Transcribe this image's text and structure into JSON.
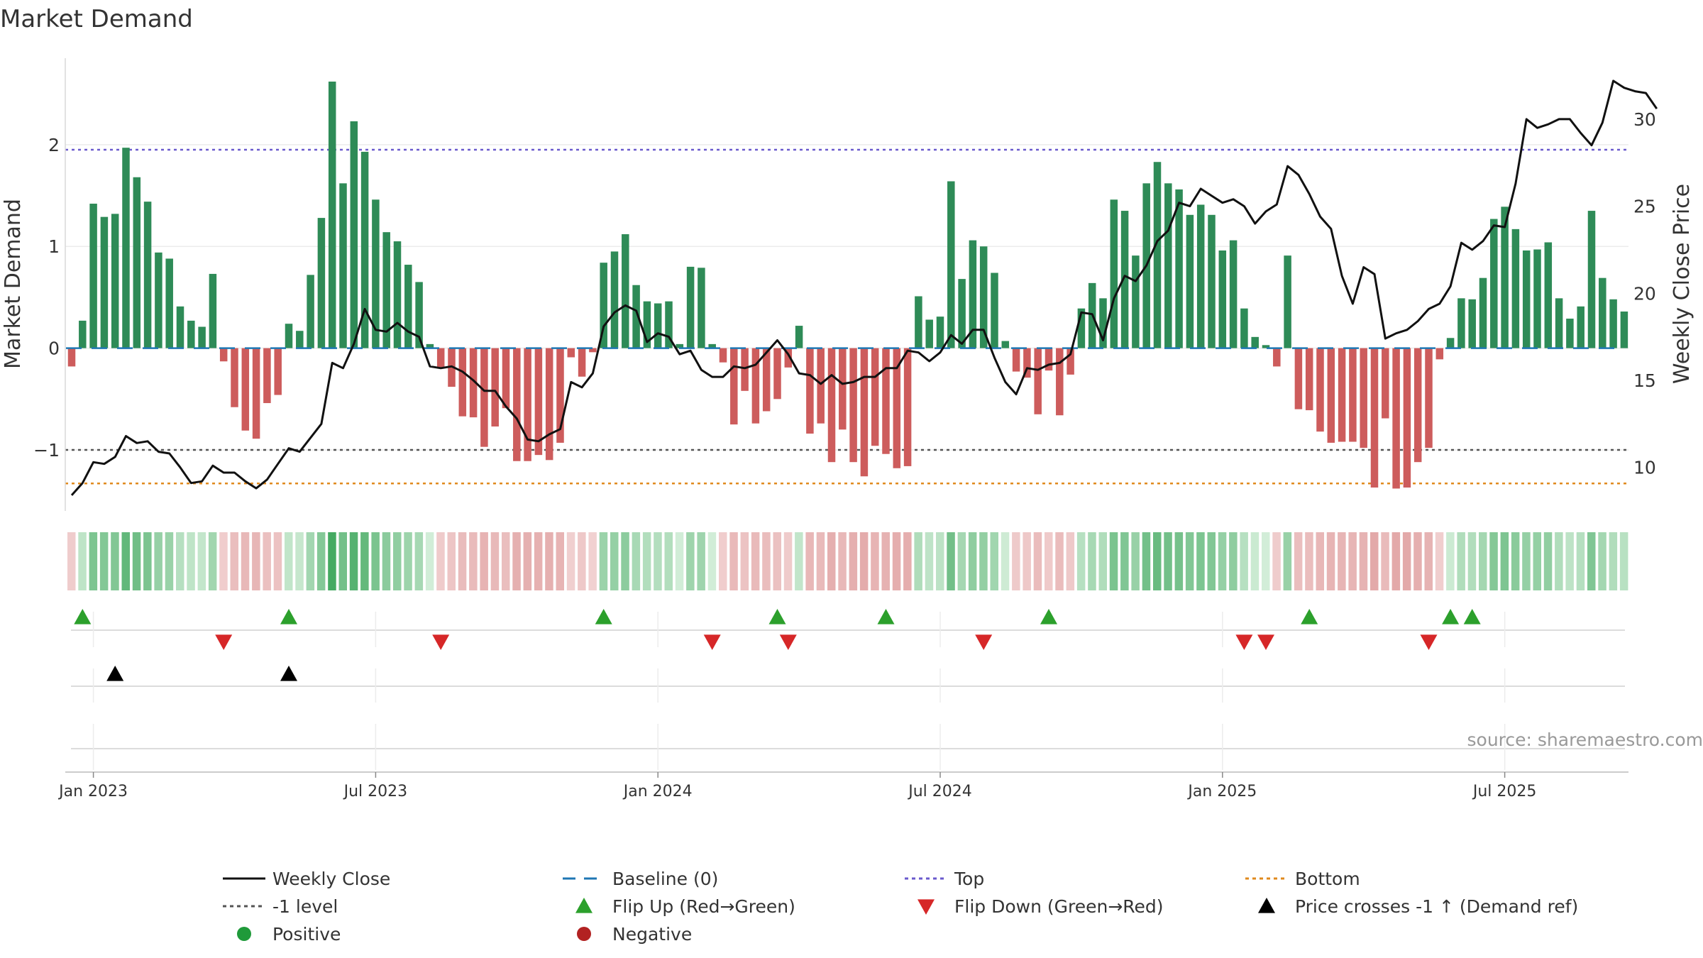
{
  "chart_data": {
    "type": "bar",
    "title": "Market Demand",
    "ylabel": "Market Demand",
    "y2label": "Weekly Close Price",
    "ylim": [
      -1.6,
      2.85
    ],
    "y2lim": [
      7.5,
      33.5
    ],
    "yticks": [
      "2",
      "1",
      "0",
      "−1"
    ],
    "yticks_values": [
      2,
      1,
      0,
      -1
    ],
    "y2ticks": [
      "30",
      "25",
      "20",
      "15",
      "10"
    ],
    "y2ticks_values": [
      30,
      25,
      20,
      15,
      10
    ],
    "xticks": [
      "Jan 2023",
      "Jul 2023",
      "Jan 2024",
      "Jul 2024",
      "Jan 2025",
      "Jul 2025"
    ],
    "xticks_week_index": [
      2,
      28,
      54,
      80,
      106,
      132
    ],
    "weeks": 143,
    "source_note": "source: sharemaestro.com",
    "levels": {
      "top": 1.95,
      "bottom": -1.33,
      "minus_one": -1.0,
      "baseline": 0
    },
    "series": [
      {
        "name": "Market Demand",
        "values": [
          -0.18,
          0.27,
          1.42,
          1.29,
          1.32,
          1.97,
          1.68,
          1.44,
          0.94,
          0.88,
          0.41,
          0.27,
          0.21,
          0.73,
          -0.13,
          -0.58,
          -0.81,
          -0.89,
          -0.54,
          -0.46,
          0.24,
          0.17,
          0.72,
          1.28,
          2.62,
          1.62,
          2.23,
          1.93,
          1.46,
          1.14,
          1.05,
          0.82,
          0.65,
          0.04,
          -0.19,
          -0.38,
          -0.67,
          -0.68,
          -0.97,
          -0.77,
          -0.59,
          -1.11,
          -1.11,
          -1.05,
          -1.1,
          -0.93,
          -0.09,
          -0.28,
          -0.04,
          0.84,
          0.95,
          1.12,
          0.62,
          0.46,
          0.44,
          0.46,
          0.04,
          0.8,
          0.79,
          0.04,
          -0.14,
          -0.75,
          -0.42,
          -0.74,
          -0.62,
          -0.5,
          -0.19,
          0.22,
          -0.84,
          -0.74,
          -1.12,
          -0.8,
          -1.12,
          -1.26,
          -0.96,
          -1.04,
          -1.18,
          -1.16,
          0.51,
          0.28,
          0.31,
          1.64,
          0.68,
          1.06,
          1.0,
          0.74,
          0.07,
          -0.23,
          -0.29,
          -0.65,
          -0.22,
          -0.66,
          -0.26,
          0.39,
          0.64,
          0.49,
          1.46,
          1.35,
          0.91,
          1.62,
          1.83,
          1.62,
          1.56,
          1.31,
          1.41,
          1.31,
          0.96,
          1.06,
          0.39,
          0.11,
          0.03,
          -0.18,
          0.91,
          -0.6,
          -0.61,
          -0.82,
          -0.93,
          -0.92,
          -0.92,
          -0.98,
          -1.37,
          -0.69,
          -1.38,
          -1.37,
          -1.12,
          -0.98,
          -0.11,
          0.1,
          0.49,
          0.48,
          0.69,
          1.27,
          1.39,
          1.17,
          0.96,
          0.97,
          1.04,
          0.49,
          0.29,
          0.41,
          1.35,
          0.69,
          0.48,
          0.36
        ]
      },
      {
        "name": "Weekly Close",
        "values": [
          8.4,
          9.1,
          10.3,
          10.2,
          10.6,
          11.8,
          11.4,
          11.5,
          10.9,
          10.8,
          10.0,
          9.1,
          9.2,
          10.1,
          9.7,
          9.7,
          9.2,
          8.8,
          9.3,
          10.2,
          11.1,
          10.9,
          11.7,
          12.5,
          16.0,
          15.7,
          17.1,
          19.1,
          17.9,
          17.8,
          18.3,
          17.8,
          17.5,
          15.8,
          15.7,
          15.8,
          15.5,
          15.0,
          14.4,
          14.4,
          13.5,
          12.8,
          11.6,
          11.5,
          11.9,
          12.2,
          14.9,
          14.6,
          15.4,
          18.1,
          18.9,
          19.3,
          19.0,
          17.2,
          17.7,
          17.5,
          16.5,
          16.7,
          15.6,
          15.2,
          15.2,
          15.8,
          15.7,
          15.9,
          16.6,
          17.3,
          16.5,
          15.4,
          15.3,
          14.8,
          15.3,
          14.8,
          14.9,
          15.2,
          15.2,
          15.7,
          15.7,
          16.7,
          16.6,
          16.1,
          16.6,
          17.6,
          17.1,
          17.9,
          17.9,
          16.3,
          14.9,
          14.2,
          15.7,
          15.6,
          15.9,
          16.0,
          16.5,
          18.9,
          18.8,
          17.3,
          19.7,
          21.0,
          20.7,
          21.6,
          23.0,
          23.6,
          25.2,
          25.0,
          26.0,
          25.6,
          25.2,
          25.4,
          25.0,
          24.0,
          24.7,
          25.1,
          27.3,
          26.8,
          25.7,
          24.4,
          23.7,
          21.0,
          19.4,
          21.5,
          21.1,
          17.4,
          17.7,
          17.9,
          18.4,
          19.1,
          19.4,
          20.4,
          22.9,
          22.5,
          23.0,
          23.9,
          23.8,
          26.3,
          30.0,
          29.5,
          29.7,
          30.0,
          30.0,
          29.2,
          28.5,
          29.8,
          32.2,
          31.8,
          31.6,
          31.5,
          30.6
        ]
      }
    ],
    "flip_up_weeks": [
      1,
      20,
      49,
      65,
      75,
      90,
      114,
      127,
      129
    ],
    "flip_down_weeks": [
      14,
      34,
      59,
      66,
      84,
      108,
      110,
      125
    ],
    "price_cross_weeks": [
      4,
      20
    ],
    "colors": {
      "positive": "#2e8b57",
      "negative": "#cd5c5c",
      "price": "#111111",
      "baseline": "#1f77b4",
      "top": "#6a5acd",
      "bottom": "#e08a1e",
      "minus_one": "#555555",
      "flip_up": "#2ca02c",
      "flip_down": "#d62728",
      "cross": "#000000",
      "grid": "#ececec"
    },
    "legend": {
      "items": [
        {
          "label": "Weekly Close",
          "key": "weekly-close"
        },
        {
          "label": "Baseline (0)",
          "key": "baseline"
        },
        {
          "label": "Top",
          "key": "top"
        },
        {
          "label": "Bottom",
          "key": "bottom"
        },
        {
          "label": "-1 level",
          "key": "minus-one"
        },
        {
          "label": "Flip Up (Red→Green)",
          "key": "flip-up"
        },
        {
          "label": "Flip Down (Green→Red)",
          "key": "flip-down"
        },
        {
          "label": "Price crosses -1 ↑ (Demand ref)",
          "key": "price-cross"
        },
        {
          "label": "Positive",
          "key": "positive"
        },
        {
          "label": "Negative",
          "key": "negative"
        }
      ]
    }
  }
}
